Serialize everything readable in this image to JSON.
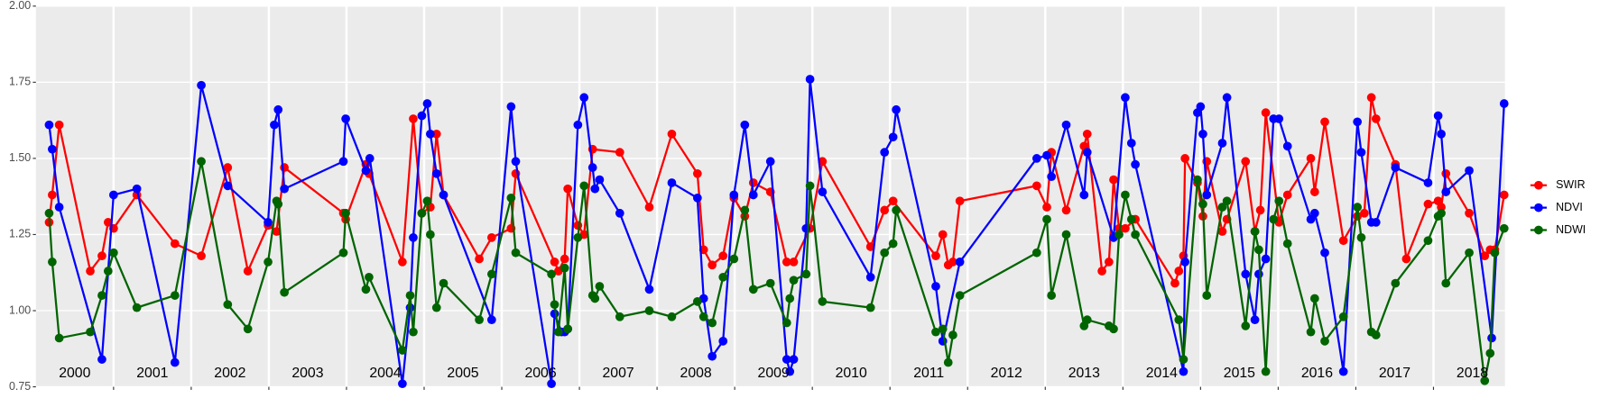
{
  "chart_data": {
    "type": "line",
    "xlim": [
      2000.0,
      2018.92
    ],
    "ylim": [
      0.75,
      2.0
    ],
    "yticks": [
      0.75,
      {
        "value": 1.0,
        "label": "1.00"
      },
      1.25,
      {
        "value": 1.5,
        "label": "1.50"
      },
      1.75,
      {
        "value": 2.0,
        "label": "2.00"
      }
    ],
    "xticks": [
      {
        "value": 2000.5,
        "label": "2000"
      },
      {
        "value": 2001.5,
        "label": "2001"
      },
      {
        "value": 2002.5,
        "label": "2002"
      },
      {
        "value": 2003.5,
        "label": "2003"
      },
      {
        "value": 2004.5,
        "label": "2004"
      },
      {
        "value": 2005.5,
        "label": "2005"
      },
      {
        "value": 2006.5,
        "label": "2006"
      },
      {
        "value": 2007.5,
        "label": "2007"
      },
      {
        "value": 2008.5,
        "label": "2008"
      },
      {
        "value": 2009.5,
        "label": "2009"
      },
      {
        "value": 2010.5,
        "label": "2010"
      },
      {
        "value": 2011.5,
        "label": "2011"
      },
      {
        "value": 2012.5,
        "label": "2012"
      },
      {
        "value": 2013.5,
        "label": "2013"
      },
      {
        "value": 2014.5,
        "label": "2014"
      },
      {
        "value": 2015.5,
        "label": "2015"
      },
      {
        "value": 2016.5,
        "label": "2016"
      },
      {
        "value": 2017.5,
        "label": "2017"
      },
      {
        "value": 2018.5,
        "label": "2018"
      }
    ],
    "xgrid": [
      2001,
      2002,
      2003,
      2004,
      2005,
      2006,
      2007,
      2008,
      2009,
      2010,
      2011,
      2012,
      2013,
      2014,
      2015,
      2016,
      2017,
      2018
    ],
    "grid": true,
    "legend": "right",
    "series": [
      {
        "name": "SWIR",
        "color": "#ff0000",
        "x": [
          2000.17,
          2000.21,
          2000.3,
          2000.7,
          2000.85,
          2000.93,
          2001.0,
          2001.3,
          2001.79,
          2002.13,
          2002.47,
          2002.73,
          2002.99,
          2003.1,
          2003.2,
          2003.96,
          2003.99,
          2004.25,
          2004.29,
          2004.72,
          2004.86,
          2004.97,
          2005.08,
          2005.16,
          2005.25,
          2005.71,
          2005.87,
          2006.12,
          2006.18,
          2006.68,
          2006.73,
          2006.81,
          2006.85,
          2006.98,
          2007.06,
          2007.17,
          2007.52,
          2007.9,
          2008.19,
          2008.52,
          2008.6,
          2008.71,
          2008.85,
          2008.99,
          2009.13,
          2009.24,
          2009.46,
          2009.67,
          2009.76,
          2009.97,
          2010.13,
          2010.75,
          2010.93,
          2011.04,
          2011.59,
          2011.68,
          2011.75,
          2011.81,
          2011.9,
          2012.89,
          2013.02,
          2013.08,
          2013.27,
          2013.5,
          2013.54,
          2013.73,
          2013.82,
          2013.88,
          2013.95,
          2014.03,
          2014.16,
          2014.67,
          2014.72,
          2014.78,
          2014.8,
          2014.96,
          2015.03,
          2015.08,
          2015.28,
          2015.34,
          2015.58,
          2015.7,
          2015.77,
          2015.84,
          2016.01,
          2016.12,
          2016.42,
          2016.47,
          2016.6,
          2016.84,
          2017.02,
          2017.11,
          2017.2,
          2017.26,
          2017.51,
          2017.65,
          2017.93,
          2018.06,
          2018.1,
          2018.16,
          2018.46,
          2018.66,
          2018.73,
          2018.79,
          2018.91
        ],
        "values": [
          1.29,
          1.38,
          1.61,
          1.13,
          1.18,
          1.29,
          1.27,
          1.38,
          1.22,
          1.18,
          1.47,
          1.13,
          1.28,
          1.26,
          1.47,
          1.32,
          1.3,
          1.48,
          1.45,
          1.16,
          1.63,
          1.32,
          1.34,
          1.58,
          1.38,
          1.17,
          1.24,
          1.27,
          1.45,
          1.16,
          1.13,
          1.17,
          1.4,
          1.28,
          1.25,
          1.53,
          1.52,
          1.34,
          1.58,
          1.45,
          1.2,
          1.15,
          1.18,
          1.37,
          1.31,
          1.42,
          1.39,
          1.16,
          1.16,
          1.27,
          1.49,
          1.21,
          1.33,
          1.36,
          1.18,
          1.25,
          1.15,
          1.16,
          1.36,
          1.41,
          1.34,
          1.52,
          1.33,
          1.54,
          1.58,
          1.13,
          1.16,
          1.43,
          1.27,
          1.27,
          1.3,
          1.09,
          1.13,
          1.18,
          1.5,
          1.42,
          1.31,
          1.49,
          1.26,
          1.3,
          1.49,
          1.26,
          1.33,
          1.65,
          1.29,
          1.38,
          1.5,
          1.39,
          1.62,
          1.23,
          1.31,
          1.32,
          1.7,
          1.63,
          1.48,
          1.17,
          1.35,
          1.36,
          1.34,
          1.45,
          1.32,
          1.18,
          1.2,
          1.2,
          1.38
        ]
      },
      {
        "name": "NDVI",
        "color": "#0000ff",
        "x": [
          2000.17,
          2000.21,
          2000.3,
          2000.85,
          2001.0,
          2001.3,
          2001.79,
          2002.13,
          2002.47,
          2002.99,
          2003.07,
          2003.12,
          2003.2,
          2003.96,
          2003.99,
          2004.25,
          2004.3,
          2004.72,
          2004.82,
          2004.86,
          2004.97,
          2005.04,
          2005.08,
          2005.16,
          2005.25,
          2005.87,
          2006.12,
          2006.18,
          2006.64,
          2006.68,
          2006.77,
          2006.81,
          2006.85,
          2006.98,
          2007.06,
          2007.17,
          2007.2,
          2007.26,
          2007.52,
          2007.9,
          2008.19,
          2008.52,
          2008.6,
          2008.71,
          2008.85,
          2008.99,
          2009.13,
          2009.24,
          2009.46,
          2009.67,
          2009.71,
          2009.76,
          2009.92,
          2009.97,
          2010.13,
          2010.75,
          2010.93,
          2011.04,
          2011.08,
          2011.59,
          2011.68,
          2011.9,
          2012.89,
          2013.02,
          2013.08,
          2013.27,
          2013.5,
          2013.54,
          2013.88,
          2014.03,
          2014.11,
          2014.16,
          2014.78,
          2014.8,
          2014.96,
          2015.0,
          2015.03,
          2015.08,
          2015.28,
          2015.34,
          2015.58,
          2015.7,
          2015.75,
          2015.84,
          2015.94,
          2016.01,
          2016.12,
          2016.42,
          2016.47,
          2016.6,
          2016.84,
          2017.02,
          2017.07,
          2017.2,
          2017.26,
          2017.51,
          2017.93,
          2018.06,
          2018.1,
          2018.16,
          2018.46,
          2018.75,
          2018.91
        ],
        "values": [
          1.61,
          1.53,
          1.34,
          0.84,
          1.38,
          1.4,
          0.83,
          1.74,
          1.41,
          1.29,
          1.61,
          1.66,
          1.4,
          1.49,
          1.63,
          1.46,
          1.5,
          0.76,
          1.01,
          1.24,
          1.64,
          1.68,
          1.58,
          1.45,
          1.38,
          0.97,
          1.67,
          1.49,
          0.76,
          0.99,
          0.93,
          0.93,
          0.94,
          1.61,
          1.7,
          1.47,
          1.4,
          1.43,
          1.32,
          1.07,
          1.42,
          1.37,
          1.04,
          0.85,
          0.9,
          1.38,
          1.61,
          1.38,
          1.49,
          0.84,
          0.8,
          0.84,
          1.27,
          1.76,
          1.39,
          1.11,
          1.52,
          1.57,
          1.66,
          1.08,
          0.9,
          1.16,
          1.5,
          1.51,
          1.44,
          1.61,
          1.38,
          1.52,
          1.24,
          1.7,
          1.55,
          1.48,
          0.8,
          1.16,
          1.65,
          1.67,
          1.58,
          1.38,
          1.55,
          1.7,
          1.12,
          0.97,
          1.12,
          1.17,
          1.63,
          1.63,
          1.54,
          1.3,
          1.32,
          1.19,
          0.8,
          1.62,
          1.52,
          1.29,
          1.29,
          1.47,
          1.42,
          1.64,
          1.58,
          1.39,
          1.46,
          0.91,
          1.68
        ]
      },
      {
        "name": "NDWI",
        "color": "#006400",
        "x": [
          2000.17,
          2000.21,
          2000.3,
          2000.7,
          2000.85,
          2000.93,
          2001.0,
          2001.3,
          2001.79,
          2002.13,
          2002.47,
          2002.73,
          2002.99,
          2003.1,
          2003.12,
          2003.2,
          2003.96,
          2003.99,
          2004.25,
          2004.29,
          2004.72,
          2004.82,
          2004.86,
          2004.97,
          2005.04,
          2005.08,
          2005.16,
          2005.25,
          2005.71,
          2005.87,
          2006.12,
          2006.18,
          2006.64,
          2006.68,
          2006.73,
          2006.81,
          2006.85,
          2006.98,
          2007.06,
          2007.17,
          2007.2,
          2007.26,
          2007.52,
          2007.9,
          2008.19,
          2008.52,
          2008.6,
          2008.71,
          2008.85,
          2008.99,
          2009.13,
          2009.24,
          2009.46,
          2009.67,
          2009.71,
          2009.76,
          2009.92,
          2009.97,
          2010.13,
          2010.75,
          2010.93,
          2011.04,
          2011.08,
          2011.59,
          2011.68,
          2011.75,
          2011.81,
          2011.9,
          2012.89,
          2013.02,
          2013.08,
          2013.27,
          2013.5,
          2013.54,
          2013.82,
          2013.88,
          2013.95,
          2014.03,
          2014.11,
          2014.16,
          2014.72,
          2014.78,
          2014.96,
          2015.03,
          2015.08,
          2015.28,
          2015.34,
          2015.58,
          2015.7,
          2015.75,
          2015.84,
          2015.94,
          2016.01,
          2016.12,
          2016.42,
          2016.47,
          2016.6,
          2016.84,
          2017.02,
          2017.07,
          2017.2,
          2017.26,
          2017.51,
          2017.93,
          2018.06,
          2018.1,
          2018.16,
          2018.46,
          2018.66,
          2018.73,
          2018.79,
          2018.91
        ],
        "values": [
          1.32,
          1.16,
          0.91,
          0.93,
          1.05,
          1.13,
          1.19,
          1.01,
          1.05,
          1.49,
          1.02,
          0.94,
          1.16,
          1.36,
          1.35,
          1.06,
          1.19,
          1.32,
          1.07,
          1.11,
          0.87,
          1.05,
          0.93,
          1.32,
          1.36,
          1.25,
          1.01,
          1.09,
          0.97,
          1.12,
          1.37,
          1.19,
          1.12,
          1.02,
          0.93,
          1.14,
          0.94,
          1.24,
          1.41,
          1.05,
          1.04,
          1.08,
          0.98,
          1.0,
          0.98,
          1.03,
          0.98,
          0.96,
          1.11,
          1.17,
          1.33,
          1.07,
          1.09,
          0.96,
          1.04,
          1.1,
          1.12,
          1.41,
          1.03,
          1.01,
          1.19,
          1.22,
          1.33,
          0.93,
          0.94,
          0.83,
          0.92,
          1.05,
          1.19,
          1.3,
          1.05,
          1.25,
          0.95,
          0.97,
          0.95,
          0.94,
          1.25,
          1.38,
          1.3,
          1.25,
          0.97,
          0.84,
          1.43,
          1.35,
          1.05,
          1.34,
          1.36,
          0.95,
          1.26,
          1.2,
          0.8,
          1.3,
          1.36,
          1.22,
          0.93,
          1.04,
          0.9,
          0.98,
          1.34,
          1.24,
          0.93,
          0.92,
          1.09,
          1.23,
          1.31,
          1.32,
          1.09,
          1.19,
          0.77,
          0.86,
          1.19,
          1.27
        ]
      }
    ]
  }
}
